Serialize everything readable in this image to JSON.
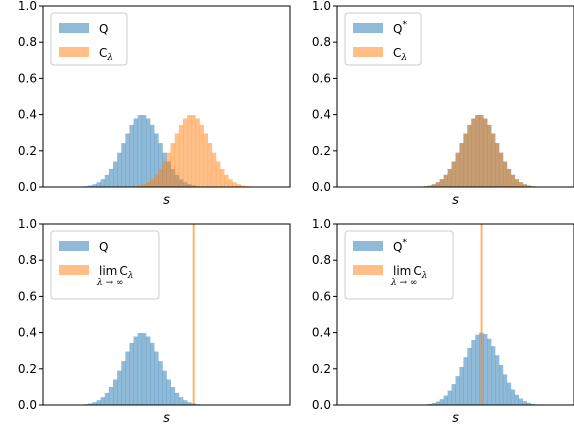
{
  "colors": {
    "blue": "#1f77b4",
    "orange": "#ff7f0e",
    "bar_alpha": 0.5,
    "line_alpha": 0.6
  },
  "chart_data": [
    {
      "type": "histogram",
      "panel": "top-left",
      "xlabel": "s",
      "ylim": [
        0,
        1.0
      ],
      "yticks": [
        "0.0",
        "0.2",
        "0.4",
        "0.6",
        "0.8",
        "1.0"
      ],
      "legend": {
        "placement": "upper-left"
      },
      "series": [
        {
          "name": "Q",
          "label_parts": {
            "base": "Q"
          },
          "kind": "bars",
          "color": "blue",
          "center": 0.4,
          "peak": 0.4,
          "width": 0.165
        },
        {
          "name": "Cλ",
          "label_parts": {
            "base": "C",
            "sub": "λ"
          },
          "kind": "bars",
          "color": "orange",
          "center": 0.6,
          "peak": 0.4,
          "width": 0.165
        }
      ]
    },
    {
      "type": "histogram",
      "panel": "top-right",
      "xlabel": "s",
      "ylim": [
        0,
        1.0
      ],
      "yticks": [
        "0.0",
        "0.2",
        "0.4",
        "0.6",
        "0.8",
        "1.0"
      ],
      "legend": {
        "placement": "upper-left"
      },
      "series": [
        {
          "name": "Q*",
          "label_parts": {
            "base": "Q",
            "sup": "*"
          },
          "kind": "bars",
          "color": "blue",
          "center": 0.6,
          "peak": 0.4,
          "width": 0.165
        },
        {
          "name": "Cλ",
          "label_parts": {
            "base": "C",
            "sub": "λ"
          },
          "kind": "bars",
          "color": "orange",
          "center": 0.6,
          "peak": 0.4,
          "width": 0.165
        }
      ]
    },
    {
      "type": "histogram",
      "panel": "bottom-left",
      "xlabel": "s",
      "ylim": [
        0,
        1.0
      ],
      "yticks": [
        "0.0",
        "0.2",
        "0.4",
        "0.6",
        "0.8",
        "1.0"
      ],
      "legend": {
        "placement": "upper-left"
      },
      "series": [
        {
          "name": "Q",
          "label_parts": {
            "base": "Q"
          },
          "kind": "bars",
          "color": "blue",
          "center": 0.4,
          "peak": 0.4,
          "width": 0.165
        },
        {
          "name": "lim λ→∞ Cλ",
          "label_parts": {
            "lim": "lim",
            "lim_sub": "λ → ∞",
            "base": "C",
            "sub": "λ"
          },
          "kind": "vline",
          "color": "orange",
          "x": 0.61
        }
      ]
    },
    {
      "type": "histogram",
      "panel": "bottom-right",
      "xlabel": "s",
      "ylim": [
        0,
        1.0
      ],
      "yticks": [
        "0.0",
        "0.2",
        "0.4",
        "0.6",
        "0.8",
        "1.0"
      ],
      "legend": {
        "placement": "upper-left"
      },
      "series": [
        {
          "name": "Q*",
          "label_parts": {
            "base": "Q",
            "sup": "*"
          },
          "kind": "bars",
          "color": "blue",
          "center": 0.61,
          "peak": 0.4,
          "width": 0.165
        },
        {
          "name": "lim λ→∞ Cλ",
          "label_parts": {
            "lim": "lim",
            "lim_sub": "λ → ∞",
            "base": "C",
            "sub": "λ"
          },
          "kind": "vline",
          "color": "orange",
          "x": 0.61
        }
      ]
    }
  ]
}
